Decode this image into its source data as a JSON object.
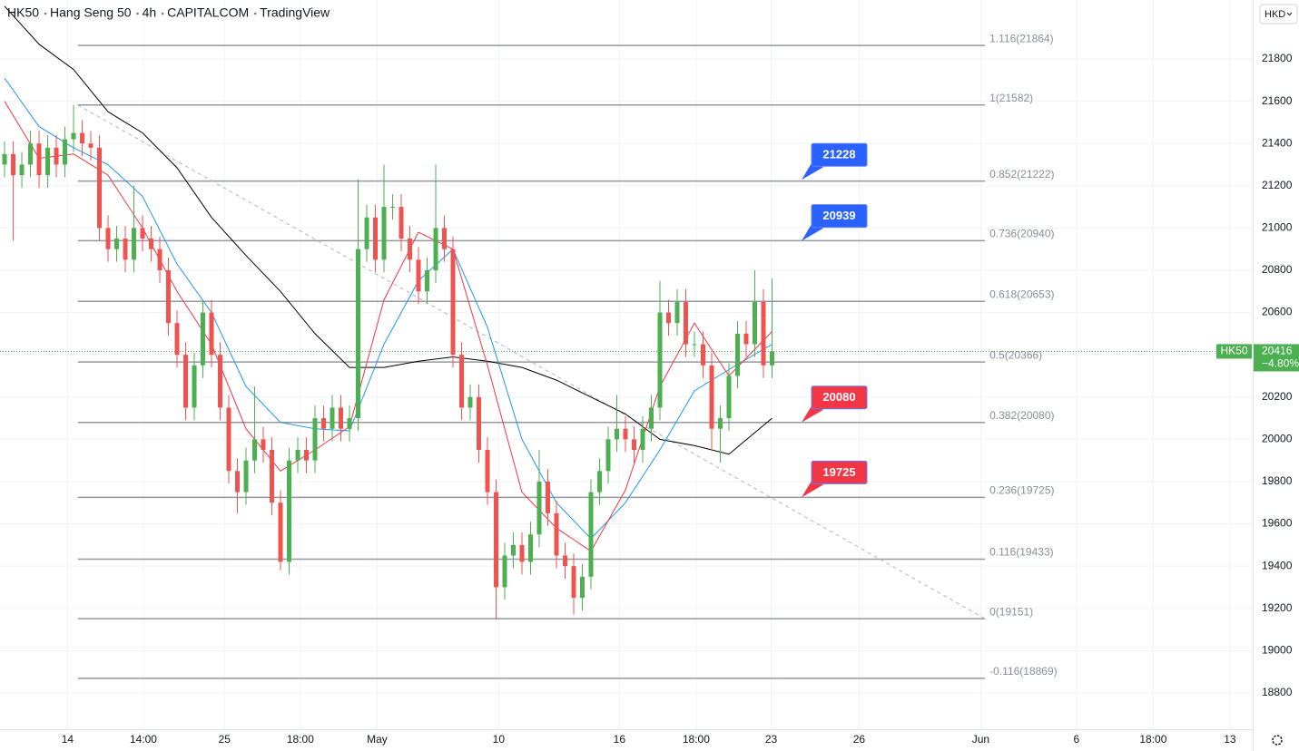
{
  "chart_data": {
    "type": "candlestick",
    "header": [
      "HK50",
      "Hang Seng 50",
      "4h",
      "CAPITALCOM",
      "TradingView"
    ],
    "currency": "HKD",
    "up_color": "#4caf50",
    "down_color": "#ef5350",
    "xlim": [
      -0.53,
      144.74
    ],
    "xticks": [
      {
        "value": 7.3,
        "label": "14"
      },
      {
        "value": 16.1,
        "label": "14:00"
      },
      {
        "value": 25.5,
        "label": "25"
      },
      {
        "value": 34.3,
        "label": "18:00"
      },
      {
        "value": 43.2,
        "label": "May"
      },
      {
        "value": 57.3,
        "label": "10"
      },
      {
        "value": 71.3,
        "label": "16"
      },
      {
        "value": 80.2,
        "label": "18:00"
      },
      {
        "value": 88.9,
        "label": "23"
      },
      {
        "value": 99.1,
        "label": "26"
      },
      {
        "value": 113.2,
        "label": "Jun"
      },
      {
        "value": 124.3,
        "label": "6"
      },
      {
        "value": 133.2,
        "label": "18:00"
      },
      {
        "value": 142.1,
        "label": "13"
      }
    ],
    "ylim": [
      18628,
      22079
    ],
    "yticks": [
      18800,
      19000,
      19200,
      19400,
      19600,
      19800,
      20000,
      20200,
      20400,
      20600,
      20800,
      21000,
      21200,
      21400,
      21600,
      21800
    ],
    "grid": true,
    "open": [
      21300,
      21350,
      21250,
      21300,
      21400,
      21250,
      21380,
      21300,
      21420,
      21450,
      21400,
      21380,
      21000,
      20900,
      20950,
      20850,
      21000,
      20950,
      20900,
      20800,
      20550,
      20400,
      20150,
      20350,
      20600,
      20400,
      20150,
      19850,
      19750,
      19900,
      20000,
      19950,
      19700,
      19420,
      19900,
      19950,
      19900,
      20100,
      20050,
      20150,
      20050,
      20100,
      20900,
      21050,
      20850,
      21100,
      21100,
      20950,
      20850,
      20700,
      20800,
      21000,
      20900,
      20400,
      20150,
      20200,
      19950,
      19750,
      19300,
      19450,
      19500,
      19420,
      19550,
      19800,
      19650,
      19450,
      19400,
      19250,
      19350,
      19750,
      19850,
      20000,
      20050,
      20000,
      19950,
      20050,
      20150,
      20600,
      20550,
      20650,
      20450,
      20450,
      20350,
      20050,
      20100,
      20300,
      20500,
      20450,
      20650,
      20350
    ],
    "high": [
      21410,
      21410,
      21360,
      21460,
      21460,
      21440,
      21440,
      21480,
      21582,
      21510,
      21460,
      21440,
      21060,
      21010,
      21010,
      21200,
      21060,
      21010,
      20960,
      20860,
      20610,
      20460,
      20410,
      20660,
      20660,
      20460,
      20210,
      19910,
      19960,
      20250,
      20060,
      20010,
      19760,
      19960,
      20010,
      20010,
      20160,
      20160,
      20210,
      20210,
      20160,
      21230,
      21110,
      21110,
      21300,
      21160,
      21160,
      21010,
      20910,
      20860,
      21300,
      21060,
      20960,
      20460,
      20260,
      20260,
      20010,
      19810,
      19510,
      19560,
      19560,
      19610,
      19950,
      19860,
      19710,
      19510,
      19460,
      19410,
      19810,
      19910,
      20060,
      20210,
      20110,
      20060,
      20110,
      20210,
      20750,
      20660,
      20710,
      20710,
      20510,
      20510,
      20410,
      20160,
      20360,
      20560,
      20560,
      20800,
      20710,
      20760
    ],
    "low": [
      21240,
      20940,
      21190,
      21240,
      21190,
      21190,
      21240,
      21240,
      21360,
      21340,
      21320,
      20940,
      20840,
      20840,
      20790,
      20790,
      20890,
      20840,
      20740,
      20490,
      20340,
      20090,
      20090,
      20290,
      20340,
      20090,
      19790,
      19650,
      19690,
      19840,
      19890,
      19640,
      19380,
      19360,
      19840,
      19840,
      19840,
      19990,
      19990,
      19990,
      19990,
      20040,
      20840,
      20790,
      20790,
      21040,
      20890,
      20790,
      20640,
      20640,
      20740,
      20840,
      20340,
      20090,
      20090,
      19890,
      19690,
      19151,
      19240,
      19390,
      19360,
      19360,
      19490,
      19590,
      19390,
      19340,
      19170,
      19190,
      19290,
      19690,
      19790,
      19940,
      19940,
      19890,
      19890,
      19990,
      20090,
      20490,
      20490,
      20390,
      20390,
      20290,
      19950,
      19890,
      20040,
      20240,
      20390,
      20390,
      20290,
      20290
    ],
    "close": [
      21350,
      21250,
      21300,
      21400,
      21250,
      21380,
      21300,
      21420,
      21450,
      21400,
      21380,
      21000,
      20900,
      20950,
      20850,
      21000,
      20950,
      20900,
      20800,
      20550,
      20400,
      20150,
      20350,
      20600,
      20400,
      20150,
      19850,
      19750,
      19900,
      20000,
      19950,
      19700,
      19420,
      19900,
      19950,
      19900,
      20100,
      20050,
      20150,
      20050,
      20100,
      20900,
      21050,
      20850,
      21100,
      21100,
      20950,
      20850,
      20700,
      20800,
      21000,
      20900,
      20400,
      20150,
      20200,
      19950,
      19750,
      19300,
      19450,
      19500,
      19420,
      19550,
      19800,
      19650,
      19450,
      19400,
      19250,
      19350,
      19750,
      19850,
      20000,
      20050,
      20000,
      19950,
      20050,
      20150,
      20600,
      20550,
      20650,
      20450,
      20450,
      20350,
      20050,
      20100,
      20300,
      20500,
      20450,
      20650,
      20350,
      20416
    ],
    "lines": [
      {
        "color": "#000000",
        "x": [
          0,
          4,
          8,
          12,
          16,
          20,
          24,
          28,
          32,
          36,
          40,
          44,
          48,
          52,
          56,
          60,
          64,
          68,
          72,
          76,
          80,
          84,
          89
        ],
        "values": [
          22050,
          21870,
          21750,
          21550,
          21450,
          21285,
          21050,
          20870,
          20700,
          20500,
          20340,
          20340,
          20370,
          20390,
          20370,
          20340,
          20280,
          20200,
          20120,
          20000,
          19970,
          19930,
          20100
        ]
      },
      {
        "color": "#2196f3",
        "x": [
          0,
          4,
          8,
          12,
          16,
          20,
          24,
          28,
          32,
          36,
          40,
          44,
          48,
          52,
          56,
          60,
          64,
          68,
          72,
          76,
          80,
          84,
          89
        ],
        "values": [
          21710,
          21480,
          21380,
          21300,
          21150,
          20830,
          20600,
          20250,
          20080,
          20050,
          20040,
          20450,
          20750,
          20900,
          20530,
          20000,
          19700,
          19530,
          19700,
          19950,
          20230,
          20330,
          20450
        ]
      },
      {
        "color": "#f23645",
        "x": [
          0,
          4,
          8,
          12,
          16,
          20,
          24,
          28,
          32,
          36,
          40,
          44,
          48,
          52,
          56,
          60,
          64,
          68,
          72,
          76,
          80,
          84,
          89
        ],
        "values": [
          21600,
          21330,
          21350,
          21250,
          21000,
          20700,
          20450,
          20050,
          19850,
          19950,
          20060,
          20660,
          20980,
          20900,
          20350,
          19750,
          19580,
          19470,
          19760,
          20250,
          20550,
          20300,
          20510
        ]
      }
    ],
    "trendline": {
      "x": [
        8.5,
        113.7
      ],
      "values": [
        21582,
        19151
      ]
    },
    "fib": [
      {
        "value": 21864,
        "label": "1.116(21864)"
      },
      {
        "value": 21582,
        "label": "1(21582)"
      },
      {
        "value": 21222,
        "label": "0.852(21222)"
      },
      {
        "value": 20940,
        "label": "0.736(20940)"
      },
      {
        "value": 20653,
        "label": "0.618(20653)"
      },
      {
        "value": 20366,
        "label": "0.5(20366)"
      },
      {
        "value": 20080,
        "label": "0.382(20080)"
      },
      {
        "value": 19725,
        "label": "0.236(19725)"
      },
      {
        "value": 19433,
        "label": "0.116(19433)"
      },
      {
        "value": 19151,
        "label": "0(19151)"
      },
      {
        "value": 18869,
        "label": "-0.116(18869)"
      }
    ],
    "callouts": [
      {
        "value": 21228,
        "color": "#2962ff"
      },
      {
        "value": 20939,
        "color": "#2962ff"
      },
      {
        "value": 20080,
        "color": "#f23645"
      },
      {
        "value": 19725,
        "color": "#f23645"
      }
    ],
    "last": {
      "value": 20416,
      "change": "−4.80%",
      "color": "#4caf50"
    }
  }
}
